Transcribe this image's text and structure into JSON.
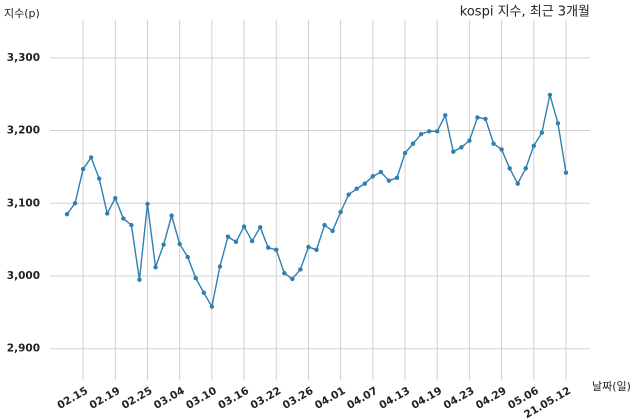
{
  "chart_data": {
    "type": "line",
    "title": "kospi 지수, 최근 3개월",
    "y_label": "지수(p)",
    "x_label": "날짜(일)",
    "categories": [
      null,
      null,
      "02.15",
      null,
      null,
      null,
      "02.19",
      null,
      null,
      null,
      "02.25",
      null,
      null,
      null,
      "03.04",
      null,
      null,
      null,
      "03.10",
      null,
      null,
      null,
      "03.16",
      null,
      null,
      null,
      "03.22",
      null,
      null,
      null,
      "03.26",
      null,
      null,
      null,
      "04.01",
      null,
      null,
      null,
      "04.07",
      null,
      null,
      null,
      "04.13",
      null,
      null,
      null,
      "04.19",
      null,
      null,
      null,
      "04.23",
      null,
      null,
      null,
      "04.29",
      null,
      null,
      null,
      "05.06",
      null,
      null,
      null,
      "21.05.12"
    ],
    "values": [
      3085,
      3100,
      3147,
      3163,
      3134,
      3086,
      3107,
      3079,
      3070,
      2995,
      3099,
      3012,
      3043,
      3083,
      3044,
      3026,
      2997,
      2977,
      2958,
      3013,
      3054,
      3047,
      3068,
      3048,
      3067,
      3039,
      3036,
      3004,
      2996,
      3009,
      3040,
      3036,
      3070,
      3062,
      3088,
      3112,
      3120,
      3127,
      3137,
      3143,
      3131,
      3135,
      3169,
      3182,
      3195,
      3199,
      3199,
      3221,
      3171,
      3177,
      3186,
      3218,
      3216,
      3182,
      3174,
      3148,
      3127,
      3148,
      3179,
      3197,
      3249,
      3210,
      3142
    ],
    "color": "#2f7fb0",
    "ylim": [
      2857,
      3352
    ],
    "yticks": [
      {
        "value": 2900,
        "label": "2,900"
      },
      {
        "value": 3000,
        "label": "3,000"
      },
      {
        "value": 3100,
        "label": "3,100"
      },
      {
        "value": 3200,
        "label": "3,200"
      },
      {
        "value": 3300,
        "label": "3,300"
      }
    ],
    "grid": true
  }
}
